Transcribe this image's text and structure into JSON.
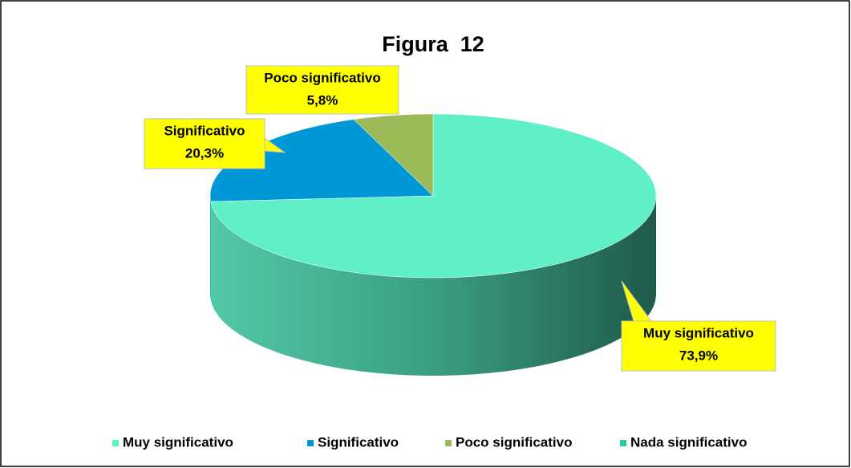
{
  "chart_data": {
    "type": "pie3d",
    "title": "Figura  12",
    "categories": [
      "Muy significativo",
      "Significativo",
      "Poco significativo",
      "Nada significativo"
    ],
    "values": [
      73.9,
      20.3,
      5.8,
      0
    ],
    "value_labels": [
      "73,9%",
      "20,3%",
      "5,8%",
      null
    ],
    "colors": [
      "#5ff0c8",
      "#0097d6",
      "#9bbb59",
      "#2fc6a0"
    ],
    "legend": "bottom"
  }
}
